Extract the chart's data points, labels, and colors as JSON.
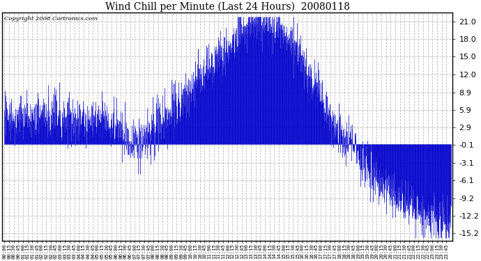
{
  "title": "Wind Chill per Minute (Last 24 Hours)  20080118",
  "copyright": "Copyright 2008 Cartronics.com",
  "y_ticks": [
    21.0,
    18.0,
    15.0,
    12.0,
    8.9,
    5.9,
    2.9,
    -0.1,
    -3.1,
    -6.1,
    -9.2,
    -12.2,
    -15.2
  ],
  "ylim": [
    -16.5,
    22.5
  ],
  "bar_color": "#0000CC",
  "background_color": "#FFFFFF",
  "grid_color": "#BBBBBB",
  "x_tick_interval": 15,
  "total_minutes": 1440,
  "seed": 42
}
